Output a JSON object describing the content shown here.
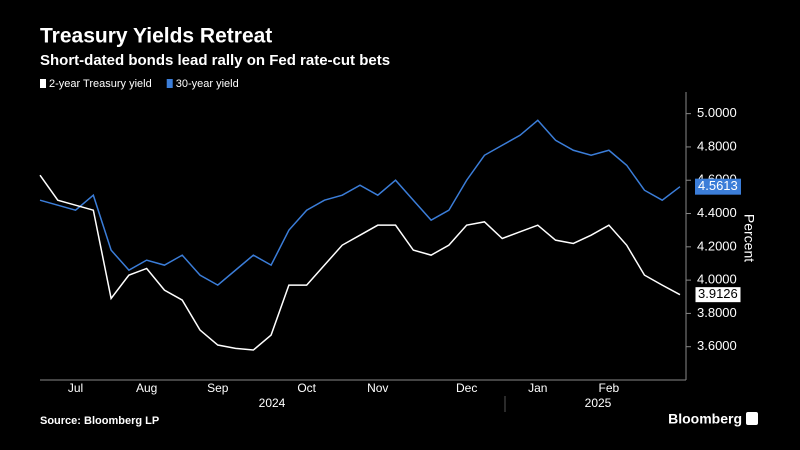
{
  "chart_data": {
    "type": "line",
    "title": "Treasury Yields Retreat",
    "subtitle": "Short-dated bonds lead rally on Fed rate-cut bets",
    "y_axis_label": "Percent",
    "source": "Source: Bloomberg LP",
    "brand": "Bloomberg",
    "years": [
      "2024",
      "2025"
    ],
    "categories": [
      null,
      null,
      "Jul",
      null,
      null,
      null,
      "Aug",
      null,
      null,
      null,
      "Sep",
      null,
      null,
      null,
      null,
      "Oct",
      null,
      null,
      null,
      "Nov",
      null,
      null,
      null,
      null,
      "Dec",
      null,
      null,
      null,
      "Jan",
      null,
      null,
      null,
      "Feb",
      null,
      null,
      null,
      null
    ],
    "series": [
      {
        "name": "2-year Treasury yield",
        "color": "#ffffff",
        "values": [
          4.63,
          4.48,
          4.45,
          4.42,
          3.89,
          4.03,
          4.07,
          3.94,
          3.88,
          3.7,
          3.61,
          3.59,
          3.58,
          3.67,
          3.97,
          3.97,
          4.09,
          4.21,
          4.27,
          4.33,
          4.33,
          4.18,
          4.15,
          4.21,
          4.33,
          4.35,
          4.25,
          4.29,
          4.33,
          4.24,
          4.22,
          4.27,
          4.33,
          4.21,
          4.03,
          3.97,
          3.9126
        ]
      },
      {
        "name": "30-year yield",
        "color": "#3b7dd8",
        "values": [
          4.48,
          4.45,
          4.42,
          4.51,
          4.18,
          4.06,
          4.12,
          4.09,
          4.15,
          4.03,
          3.97,
          4.06,
          4.15,
          4.09,
          4.3,
          4.42,
          4.48,
          4.51,
          4.57,
          4.51,
          4.6,
          4.48,
          4.36,
          4.42,
          4.6,
          4.75,
          4.81,
          4.87,
          4.96,
          4.84,
          4.78,
          4.75,
          4.78,
          4.69,
          4.54,
          4.48,
          4.5613
        ]
      }
    ],
    "ylim": [
      3.4,
      5.13
    ],
    "yticks": [
      {
        "value": 3.6,
        "label": "3.6000"
      },
      {
        "value": 3.8,
        "label": "3.8000"
      },
      {
        "value": 4.0,
        "label": "4.0000"
      },
      {
        "value": 4.2,
        "label": "4.2000"
      },
      {
        "value": 4.4,
        "label": "4.4000"
      },
      {
        "value": 4.6,
        "label": "4.6000"
      },
      {
        "value": 4.8,
        "label": "4.8000"
      },
      {
        "value": 5.0,
        "label": "5.0000"
      }
    ],
    "grid": false,
    "legend": "top-left"
  }
}
